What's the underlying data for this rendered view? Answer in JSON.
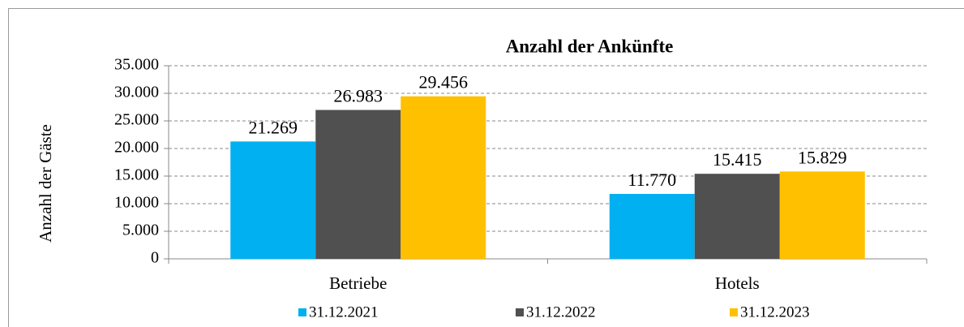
{
  "chart_data": {
    "type": "bar",
    "title": "Anzahl der Ankünfte",
    "y_label": "Anzahl der Gäste",
    "categories": [
      "Betriebe",
      "Hotels"
    ],
    "series": [
      {
        "name": "31.12.2021",
        "color": "#00b0f0",
        "values": [
          21269,
          11770
        ],
        "value_labels": [
          "21.269",
          "11.770"
        ]
      },
      {
        "name": "31.12.2022",
        "color": "#505050",
        "values": [
          26983,
          15415
        ],
        "value_labels": [
          "26.983",
          "15.415"
        ]
      },
      {
        "name": "31.12.2023",
        "color": "#ffc000",
        "values": [
          29456,
          15829
        ],
        "value_labels": [
          "29.456",
          "15.829"
        ]
      }
    ],
    "ylim": [
      0,
      35000
    ],
    "yticks": [
      0,
      {
        "value": 5000,
        "label": "5.000"
      },
      {
        "value": 10000,
        "label": "10.000"
      },
      {
        "value": 15000,
        "label": "15.000"
      },
      {
        "value": 20000,
        "label": "20.000"
      },
      {
        "value": 25000,
        "label": "25.000"
      },
      {
        "value": 30000,
        "label": "30.000"
      },
      {
        "value": 35000,
        "label": "35.000"
      }
    ],
    "grid": true,
    "legend": "bottom"
  }
}
